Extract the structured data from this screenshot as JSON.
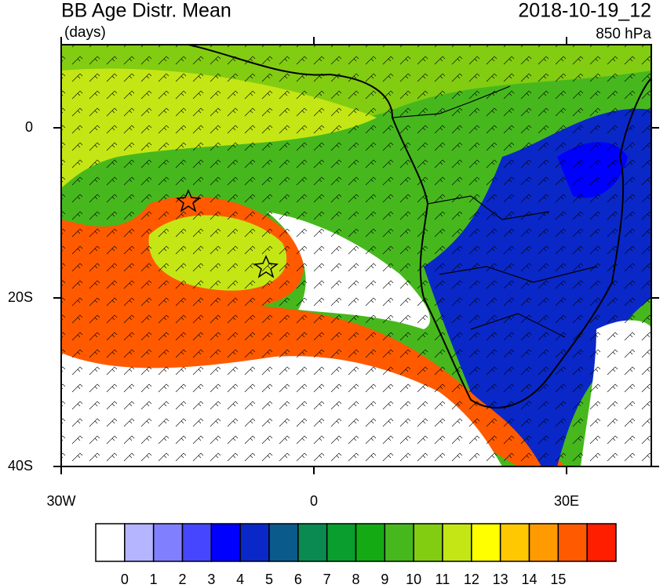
{
  "header": {
    "title": "BB Age Distr. Mean",
    "units": "(days)",
    "date": "2018-10-19_12",
    "level": "850 hPa"
  },
  "map": {
    "lat_labels": [
      "0",
      "20S",
      "40S"
    ],
    "lon_labels": [
      "30W",
      "0",
      "30E"
    ]
  },
  "colorbar": {
    "colors": [
      "#ffffff",
      "#b4b4ff",
      "#8080ff",
      "#4646ff",
      "#0000ff",
      "#0a28c8",
      "#0a5a8c",
      "#0a8a50",
      "#0a9e2e",
      "#14aa14",
      "#46b81e",
      "#82cc12",
      "#c4e614",
      "#ffff00",
      "#ffc800",
      "#ff9a00",
      "#ff5a00",
      "#ff1e00"
    ],
    "labels": [
      "0",
      "1",
      "2",
      "3",
      "4",
      "5",
      "6",
      "7",
      "8",
      "9",
      "10",
      "11",
      "12",
      "13",
      "14",
      "15"
    ]
  }
}
